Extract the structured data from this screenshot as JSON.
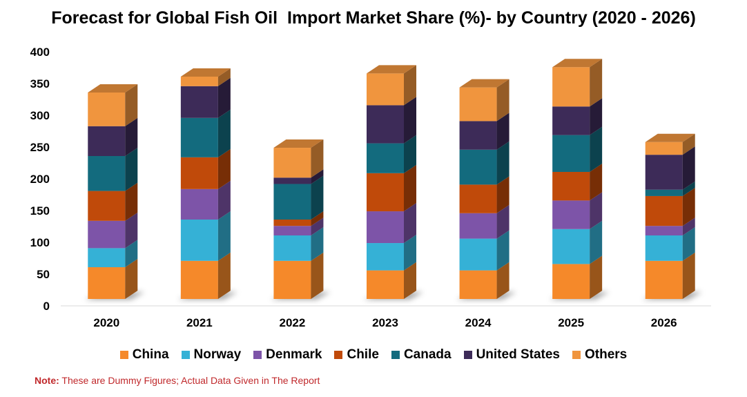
{
  "title": "Forecast for Global Fish Oil  Import Market Share (%)- by Country (2020 - 2026)",
  "note": {
    "label": "Note:",
    "text": " These are Dummy Figures; Actual Data Given in The Report"
  },
  "chart_data": {
    "type": "bar",
    "stacked": true,
    "title": "Forecast for Global Fish Oil  Import Market Share (%)- by Country (2020 - 2026)",
    "categories": [
      "2020",
      "2021",
      "2022",
      "2023",
      "2024",
      "2025",
      "2026"
    ],
    "ylim": [
      0,
      400
    ],
    "yticks": [
      0,
      50,
      100,
      150,
      200,
      250,
      300,
      350,
      400
    ],
    "legend_position": "bottom",
    "series": [
      {
        "name": "China",
        "color": "#f5892a",
        "values": [
          50,
          60,
          60,
          45,
          45,
          55,
          60
        ]
      },
      {
        "name": "Norway",
        "color": "#35b1d6",
        "values": [
          30,
          65,
          40,
          43,
          50,
          55,
          40
        ]
      },
      {
        "name": "Denmark",
        "color": "#7d54a8",
        "values": [
          43,
          48,
          15,
          50,
          40,
          45,
          15
        ]
      },
      {
        "name": "Chile",
        "color": "#c04a0a",
        "values": [
          47,
          50,
          10,
          60,
          45,
          45,
          47
        ]
      },
      {
        "name": "Canada",
        "color": "#136b7e",
        "values": [
          55,
          62,
          56,
          47,
          55,
          58,
          10
        ]
      },
      {
        "name": "United States",
        "color": "#3d2b58",
        "values": [
          47,
          50,
          10,
          60,
          45,
          45,
          55
        ]
      },
      {
        "name": "Others",
        "color": "#f0953e",
        "values": [
          53,
          15,
          47,
          50,
          53,
          62,
          20
        ]
      }
    ]
  }
}
